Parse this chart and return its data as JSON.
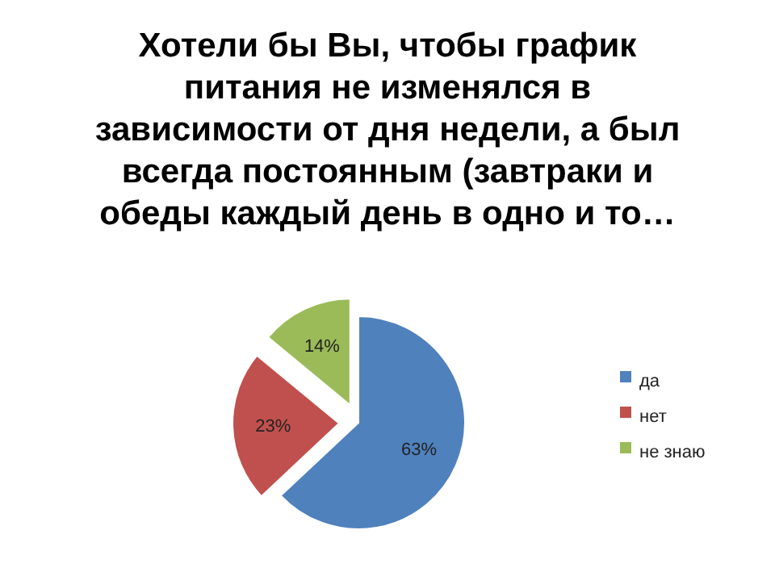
{
  "chart_data": {
    "type": "pie",
    "title": "Хотели бы Вы, чтобы график питания не изменялся в зависимости от дня недели, а был всегда постоянным (завтраки и обеды каждый день в одно и то…",
    "categories": [
      "да",
      "нет",
      "не знаю"
    ],
    "values": [
      63,
      23,
      14
    ],
    "value_labels": [
      "63%",
      "23%",
      "14%"
    ],
    "colors": [
      "#4f81bd",
      "#c0504d",
      "#9bbb59"
    ],
    "legend": "right"
  }
}
